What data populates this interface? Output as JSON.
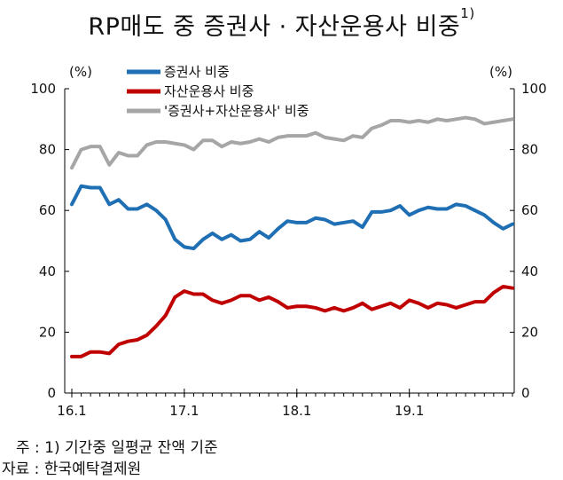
{
  "title": {
    "main": "RP매도 중 증권사 · 자산운용사 비중",
    "sup": "1)"
  },
  "notes": {
    "note1": "주 : 1) 기간중 일평균 잔액 기준",
    "source": "자료 : 한국예탁결제원"
  },
  "chart_data": {
    "type": "line",
    "title": "RP매도 중 증권사 · 자산운용사 비중",
    "yunit_left": "(%)",
    "yunit_right": "(%)",
    "ylim": [
      0,
      100
    ],
    "yticks": [
      "0",
      "20",
      "40",
      "60",
      "80",
      "100"
    ],
    "xtick_labels": [
      "16.1",
      "17.1",
      "18.1",
      "19.1"
    ],
    "xtick_index": [
      0,
      12,
      24,
      36
    ],
    "legend_position": "top-center",
    "grid": false,
    "series": [
      {
        "name": "증권사 비중",
        "color": "#1f6fb4",
        "values": [
          62,
          68,
          67.5,
          67.5,
          62,
          63.5,
          60.5,
          60.5,
          62,
          60,
          57,
          50.5,
          48,
          47.5,
          50.5,
          52.5,
          50.5,
          52,
          50,
          50.5,
          53,
          51,
          54,
          56.5,
          56,
          56,
          57.5,
          57,
          55.5,
          56,
          56.5,
          54.5,
          59.5,
          59.5,
          60,
          61.5,
          58.5,
          60,
          61,
          60.5,
          60.5,
          62,
          61.5,
          60,
          58.5,
          56,
          54,
          55.5
        ]
      },
      {
        "name": "자산운용사 비중",
        "color": "#c00000",
        "values": [
          12,
          12,
          13.5,
          13.5,
          13,
          16,
          17,
          17.5,
          19,
          22,
          25.5,
          31.5,
          33.5,
          32.5,
          32.5,
          30.5,
          29.5,
          30.5,
          32,
          32,
          30.5,
          31.5,
          30,
          28,
          28.5,
          28.5,
          28,
          27,
          28,
          27,
          28,
          29.5,
          27.5,
          28.5,
          29.5,
          28,
          30.5,
          29.5,
          28,
          29.5,
          29,
          28,
          29,
          30,
          30,
          33,
          35,
          34.5
        ]
      },
      {
        "name": "'증권사+자산운용사' 비중",
        "color": "#a6a6a6",
        "values": [
          74,
          80,
          81,
          81,
          75,
          79,
          78,
          78,
          81.5,
          82.5,
          82.5,
          82,
          81.5,
          80,
          83,
          83,
          81,
          82.5,
          82,
          82.5,
          83.5,
          82.5,
          84,
          84.5,
          84.5,
          84.5,
          85.5,
          84,
          83.5,
          83,
          84.5,
          84,
          87,
          88,
          89.5,
          89.5,
          89,
          89.5,
          89,
          90,
          89.5,
          90,
          90.5,
          90,
          88.5,
          89,
          89.5,
          90
        ]
      }
    ]
  }
}
